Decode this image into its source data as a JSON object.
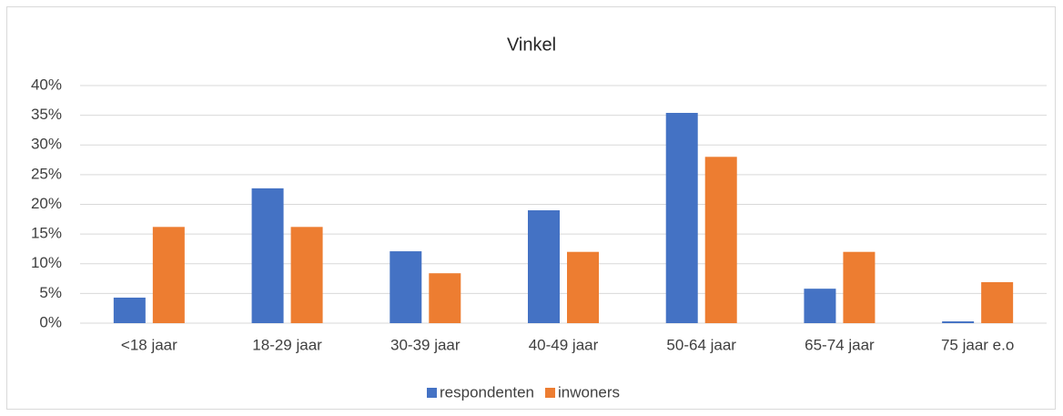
{
  "chart_data": {
    "type": "bar",
    "title": "Vinkel",
    "categories": [
      "<18 jaar",
      "18-29 jaar",
      "30-39 jaar",
      "40-49 jaar",
      "50-64 jaar",
      "65-74 jaar",
      "75 jaar e.o"
    ],
    "series": [
      {
        "name": "respondenten",
        "color": "#4472c4",
        "values": [
          4.3,
          22.7,
          12.1,
          19.0,
          35.4,
          5.8,
          0.3
        ]
      },
      {
        "name": "inwoners",
        "color": "#ed7d31",
        "values": [
          16.2,
          16.2,
          8.4,
          12.0,
          28.0,
          12.0,
          6.9
        ]
      }
    ],
    "ylim": [
      0,
      40
    ],
    "yticks": [
      {
        "value": 0,
        "label": "0%"
      },
      {
        "value": 5,
        "label": "5%"
      },
      {
        "value": 10,
        "label": "10%"
      },
      {
        "value": 15,
        "label": "15%"
      },
      {
        "value": 20,
        "label": "20%"
      },
      {
        "value": 25,
        "label": "25%"
      },
      {
        "value": 30,
        "label": "30%"
      },
      {
        "value": 35,
        "label": "35%"
      },
      {
        "value": 40,
        "label": "40%"
      }
    ],
    "grid": true,
    "legend": "bottom"
  }
}
